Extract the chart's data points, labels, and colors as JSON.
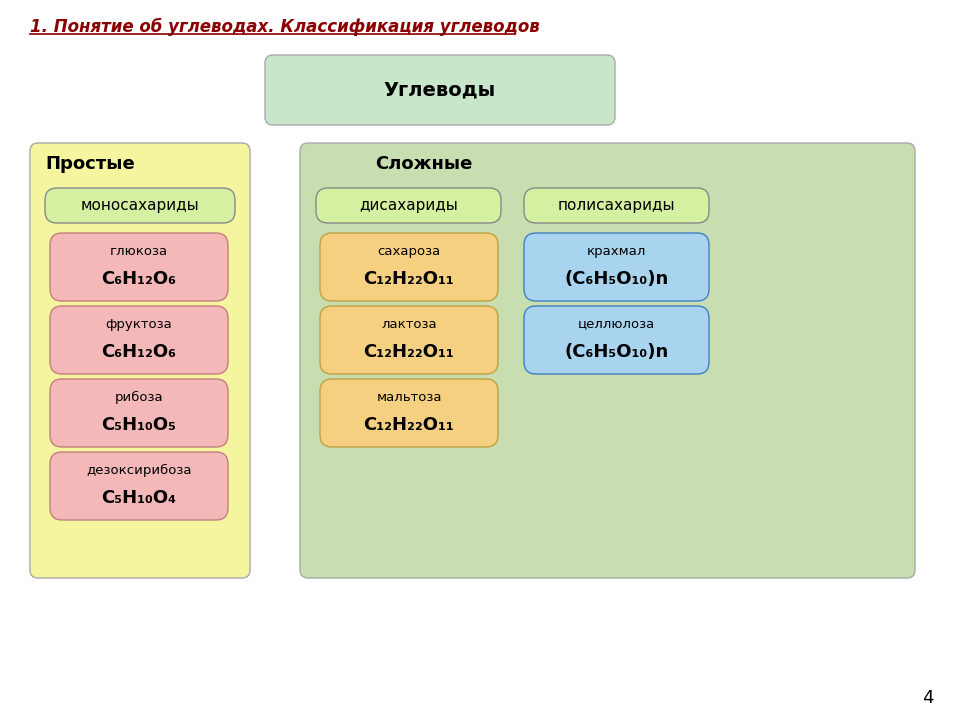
{
  "title": "1. Понятие об углеводах. Классификация углеводов",
  "title_color": "#8B0000",
  "bg_color": "#ffffff",
  "uglevody_box_color": "#c8e6c9",
  "uglevody_text": "Углеводы",
  "prostye_box_color": "#f5f5a0",
  "prostye_text": "Простые",
  "slozhnye_box_color": "#c8deb0",
  "slozhnye_text": "Сложные",
  "mono_header_color": "#d4f0a0",
  "mono_header_text": "моносахариды",
  "di_header_color": "#d4f0a0",
  "di_header_text": "дисахариды",
  "poli_header_color": "#d4f0a0",
  "poli_header_text": "полисахариды",
  "pink_box_color": "#f4b8b8",
  "yellow_box_color": "#f5d080",
  "blue_box_color": "#a8d4f0",
  "page_number": "4",
  "mono_items": [
    {
      "name": "глюкоза",
      "formula": "C₆H₁₂O₆"
    },
    {
      "name": "фруктоза",
      "formula": "C₆H₁₂O₆"
    },
    {
      "name": "рибоза",
      "formula": "C₅H₁₀O₅"
    },
    {
      "name": "дезоксирибоза",
      "formula": "C₅H₁₀O₄"
    }
  ],
  "di_items": [
    {
      "name": "сахароза",
      "formula": "C₁₂H₂₂O₁₁"
    },
    {
      "name": "лактоза",
      "formula": "C₁₂H₂₂O₁₁"
    },
    {
      "name": "мальтоза",
      "formula": "C₁₂H₂₂O₁₁"
    }
  ],
  "poli_items": [
    {
      "name": "крахмал",
      "formula": "(C₆H₅O₁₀)n"
    },
    {
      "name": "целлюлоза",
      "formula": "(C₆H₅O₁₀)n"
    }
  ]
}
